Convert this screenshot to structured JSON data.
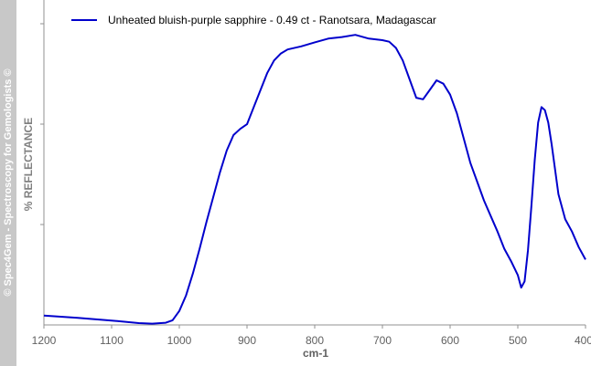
{
  "watermark": "© Spec4Gem - Spectroscopy for Gemologists ©",
  "chart_data": {
    "type": "line",
    "title": "",
    "xlabel": "cm-1",
    "ylabel": "%  REFLECTANCE",
    "xlim": [
      1200,
      400
    ],
    "x_ticks": [
      "1200",
      "1100",
      "1000",
      "900",
      "800",
      "700",
      "600",
      "500",
      "400"
    ],
    "y_tick_count": 3,
    "grid": false,
    "legend_position": "top-left",
    "series": [
      {
        "name": "Unheated bluish-purple sapphire - 0.49 ct - Ranotsara, Madagascar",
        "color": "#0000cc",
        "points": [
          [
            1200,
            0.03
          ],
          [
            1150,
            0.023
          ],
          [
            1100,
            0.014
          ],
          [
            1060,
            0.006
          ],
          [
            1040,
            0.004
          ],
          [
            1020,
            0.007
          ],
          [
            1010,
            0.015
          ],
          [
            1000,
            0.045
          ],
          [
            990,
            0.095
          ],
          [
            980,
            0.165
          ],
          [
            970,
            0.245
          ],
          [
            960,
            0.33
          ],
          [
            950,
            0.41
          ],
          [
            940,
            0.49
          ],
          [
            930,
            0.56
          ],
          [
            920,
            0.61
          ],
          [
            910,
            0.63
          ],
          [
            900,
            0.645
          ],
          [
            890,
            0.7
          ],
          [
            880,
            0.755
          ],
          [
            870,
            0.81
          ],
          [
            860,
            0.85
          ],
          [
            850,
            0.872
          ],
          [
            840,
            0.885
          ],
          [
            820,
            0.895
          ],
          [
            800,
            0.908
          ],
          [
            780,
            0.92
          ],
          [
            760,
            0.925
          ],
          [
            740,
            0.932
          ],
          [
            720,
            0.92
          ],
          [
            700,
            0.915
          ],
          [
            690,
            0.91
          ],
          [
            680,
            0.89
          ],
          [
            670,
            0.85
          ],
          [
            660,
            0.79
          ],
          [
            650,
            0.73
          ],
          [
            640,
            0.725
          ],
          [
            630,
            0.755
          ],
          [
            620,
            0.786
          ],
          [
            610,
            0.775
          ],
          [
            600,
            0.74
          ],
          [
            590,
            0.68
          ],
          [
            580,
            0.6
          ],
          [
            570,
            0.52
          ],
          [
            560,
            0.46
          ],
          [
            550,
            0.4
          ],
          [
            540,
            0.35
          ],
          [
            530,
            0.3
          ],
          [
            520,
            0.245
          ],
          [
            510,
            0.205
          ],
          [
            500,
            0.16
          ],
          [
            495,
            0.12
          ],
          [
            490,
            0.14
          ],
          [
            485,
            0.24
          ],
          [
            480,
            0.38
          ],
          [
            475,
            0.53
          ],
          [
            470,
            0.65
          ],
          [
            465,
            0.7
          ],
          [
            460,
            0.69
          ],
          [
            455,
            0.65
          ],
          [
            450,
            0.58
          ],
          [
            445,
            0.5
          ],
          [
            440,
            0.42
          ],
          [
            430,
            0.34
          ],
          [
            420,
            0.3
          ],
          [
            410,
            0.25
          ],
          [
            400,
            0.21
          ]
        ]
      }
    ]
  }
}
